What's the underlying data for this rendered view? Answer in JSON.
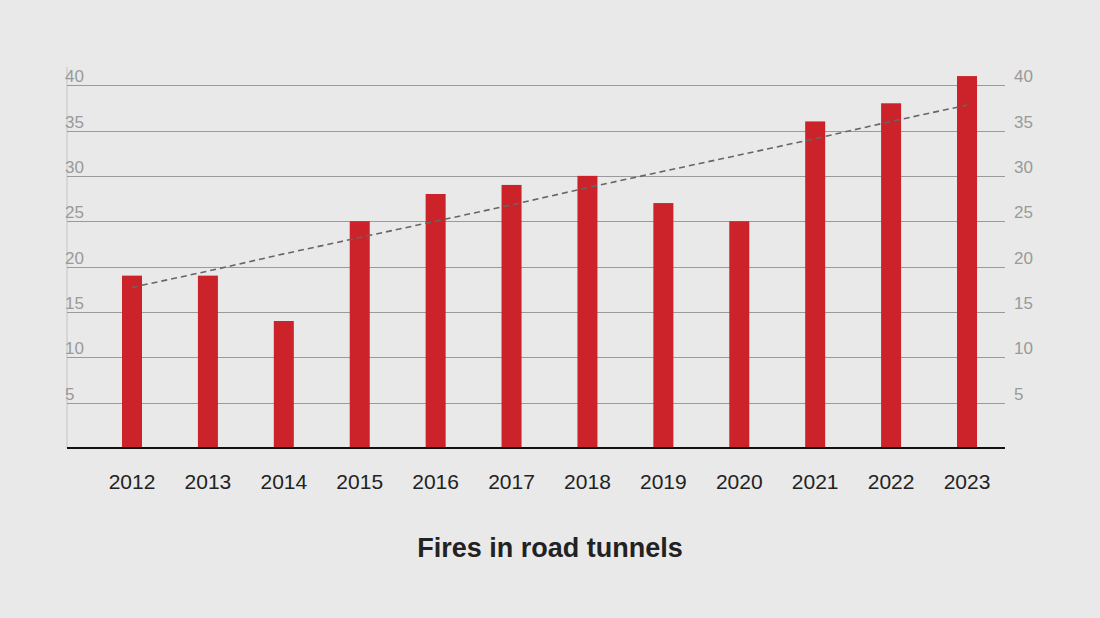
{
  "chart_data": {
    "type": "bar",
    "title": "Fires in road tunnels",
    "categories": [
      "2012",
      "2013",
      "2014",
      "2015",
      "2016",
      "2017",
      "2018",
      "2019",
      "2020",
      "2021",
      "2022",
      "2023"
    ],
    "series": [
      {
        "type": "bar",
        "color": "#cc2229",
        "values": [
          19,
          19,
          14,
          25,
          28,
          29,
          30,
          27,
          25,
          36,
          38,
          41
        ]
      },
      {
        "type": "line",
        "line_style": "dashed",
        "color": "#666666",
        "values": [
          17.7,
          19.5,
          21.4,
          23.2,
          25.0,
          26.8,
          28.7,
          30.5,
          32.3,
          34.1,
          36.0,
          37.8
        ]
      }
    ],
    "ylim": [
      0,
      42
    ],
    "yticks": [
      5,
      10,
      15,
      20,
      25,
      30,
      35,
      40
    ],
    "grid": true
  }
}
